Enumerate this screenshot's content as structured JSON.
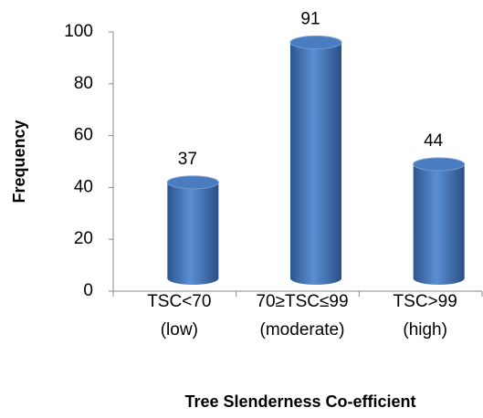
{
  "chart_data": {
    "type": "bar",
    "categories": [
      [
        "TSC<70",
        "(low)"
      ],
      [
        "70≥TSC≤99",
        "(moderate)"
      ],
      [
        "TSC>99",
        "(high)"
      ]
    ],
    "values": [
      37,
      91,
      44
    ],
    "color": "#4f81bd",
    "ylim": [
      0,
      100
    ],
    "yticks": [
      0,
      20,
      40,
      60,
      80,
      100
    ],
    "xlabel": "Tree Slenderness Co-efficient",
    "ylabel": "Frequency",
    "grid": false
  }
}
